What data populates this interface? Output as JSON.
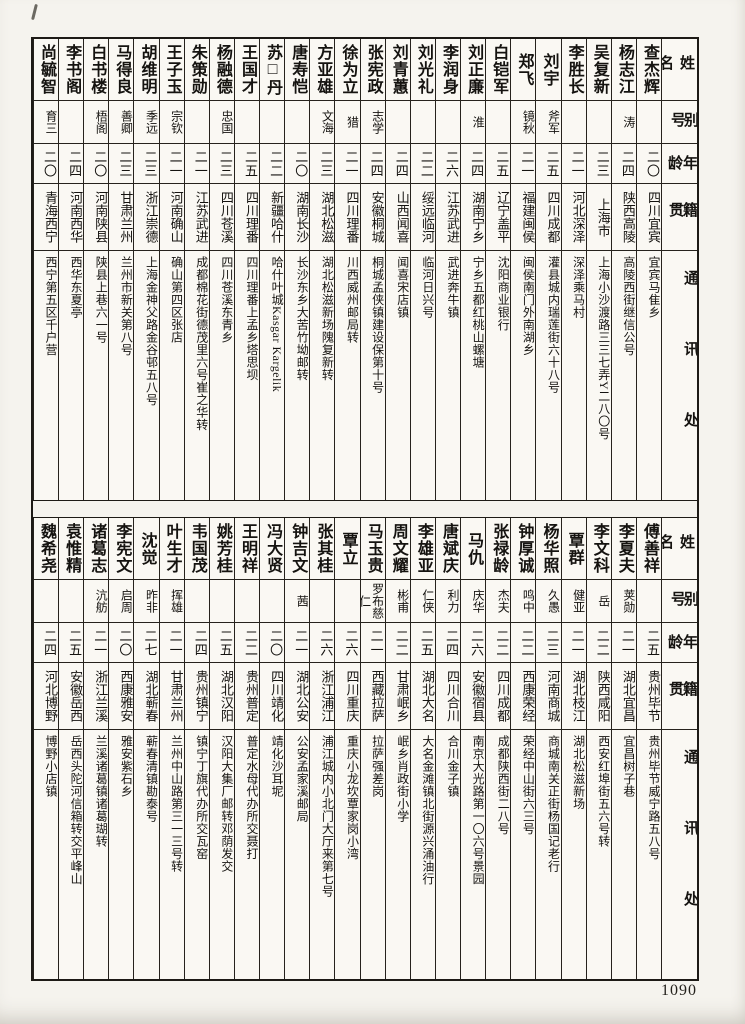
{
  "page": {
    "number": "1090"
  },
  "headers": {
    "name": "姓名",
    "alias": "别号",
    "age": "年龄",
    "native_place": "籍贯",
    "address": "通讯处"
  },
  "tables": [
    {
      "position": "top",
      "people": [
        {
          "name": "查杰辉",
          "alias": "",
          "age": "二〇",
          "native": "四川宜宾",
          "address": "宜宾马隹乡"
        },
        {
          "name": "杨志江",
          "alias": "涛",
          "age": "二四",
          "native": "陕西高陵",
          "address": "高陵西街继信公号"
        },
        {
          "name": "吴复新",
          "alias": "",
          "age": "二三",
          "native": "上海市",
          "address": "上海小沙渡路三三七弄Y二八〇号"
        },
        {
          "name": "李胜长",
          "alias": "",
          "age": "二一",
          "native": "河北深泽",
          "address": "深泽乘马村"
        },
        {
          "name": "刘宇",
          "alias": "斧军",
          "age": "二五",
          "native": "四川成都",
          "address": "灌县城内瑞莲街六十八号"
        },
        {
          "name": "郑飞",
          "alias": "镜秋",
          "age": "二一",
          "native": "福建闽侯",
          "address": "闽侯南门外南湖乡"
        },
        {
          "name": "白铠军",
          "alias": "",
          "age": "二五",
          "native": "辽宁盖平",
          "address": "沈阳商业银行"
        },
        {
          "name": "刘正廉",
          "alias": "淮",
          "age": "二四",
          "native": "湖南宁乡",
          "address": "宁乡五都红桃山螺塘"
        },
        {
          "name": "李润身",
          "alias": "",
          "age": "二六",
          "native": "江苏武进",
          "address": "武进奔牛镇"
        },
        {
          "name": "刘光礼",
          "alias": "",
          "age": "二二",
          "native": "绥远临河",
          "address": "临河日兴号"
        },
        {
          "name": "刘青蕙",
          "alias": "",
          "age": "二四",
          "native": "山西闻喜",
          "address": "闻喜宋店镇"
        },
        {
          "name": "张宪政",
          "alias": "志学",
          "age": "二四",
          "native": "安徽桐城",
          "address": "桐城孟侠镇建设保第十号"
        },
        {
          "name": "徐为立",
          "alias": "猎",
          "age": "二一",
          "native": "四川理番",
          "address": "川西威州邮局转"
        },
        {
          "name": "方亚雄",
          "alias": "文海",
          "age": "二三",
          "native": "湖北松滋",
          "address": "湖北松滋新场隗复新转"
        },
        {
          "name": "唐寿恺",
          "alias": "",
          "age": "二〇",
          "native": "湖南长沙",
          "address": "长沙东乡大苦竹坳邮转"
        },
        {
          "name": "苏□丹",
          "alias": "",
          "age": "二二",
          "native": "新疆哈什",
          "address": "哈什叶城Kasgar Kargelik"
        },
        {
          "name": "王国才",
          "alias": "",
          "age": "二五",
          "native": "四川理番",
          "address": "四川理番上孟乡塔思坝"
        },
        {
          "name": "杨融德",
          "alias": "忠国",
          "age": "二三",
          "native": "四川苍溪",
          "address": "四川苍溪东青乡"
        },
        {
          "name": "朱策勋",
          "alias": "",
          "age": "二一",
          "native": "江苏武进",
          "address": "成都棉花街德茂里六号崔之华转"
        },
        {
          "name": "王子玉",
          "alias": "宗钦",
          "age": "二一",
          "native": "河南确山",
          "address": "确山第四区张店"
        },
        {
          "name": "胡维明",
          "alias": "季远",
          "age": "二三",
          "native": "浙江崇德",
          "address": "上海金神父路金谷邨五八号"
        },
        {
          "name": "马得良",
          "alias": "善卿",
          "age": "二三",
          "native": "甘肃兰州",
          "address": "兰州市新关第八号"
        },
        {
          "name": "白书楼",
          "alias": "梧阁",
          "age": "二〇",
          "native": "河南陕县",
          "address": "陕县上巷六一号"
        },
        {
          "name": "李书阁",
          "alias": "",
          "age": "二四",
          "native": "河南西华",
          "address": "西华东夏亭"
        },
        {
          "name": "尚毓智",
          "alias": "育三",
          "age": "二〇",
          "native": "青海西宁",
          "address": "西宁第五区千户营"
        }
      ]
    },
    {
      "position": "bottom",
      "people": [
        {
          "name": "傅善祥",
          "alias": "",
          "age": "二五",
          "native": "贵州毕节",
          "address": "贵州毕节威宁路五八号"
        },
        {
          "name": "李夏夫",
          "alias": "荚勋",
          "age": "二一",
          "native": "湖北宜昌",
          "address": "宜昌树子巷"
        },
        {
          "name": "李文科",
          "alias": "岳",
          "age": "二二",
          "native": "陕西咸阳",
          "address": "西安红埠街五六号转"
        },
        {
          "name": "覃群",
          "alias": "健亚",
          "age": "二一",
          "native": "湖北枝江",
          "address": "湖北松滋新场"
        },
        {
          "name": "杨华照",
          "alias": "久愚",
          "age": "二三",
          "native": "河南商城",
          "address": "商城南关正街杨国记老行"
        },
        {
          "name": "钟厚诚",
          "alias": "鸣中",
          "age": "二二",
          "native": "西康荣经",
          "address": "荣经中山街六三号"
        },
        {
          "name": "张禄龄",
          "alias": "杰夫",
          "age": "二二",
          "native": "四川成都",
          "address": "成都陕西街二八号"
        },
        {
          "name": "马仇",
          "alias": "庆华",
          "age": "二六",
          "native": "安徽宿县",
          "address": "南京大光路第一〇六号景园"
        },
        {
          "name": "唐斌庆",
          "alias": "利力",
          "age": "二四",
          "native": "四川合川",
          "address": "合川金子镇"
        },
        {
          "name": "李雄亚",
          "alias": "仁侠",
          "age": "二五",
          "native": "湖北大名",
          "address": "大名金滩镇北街源兴涌油行"
        },
        {
          "name": "周文耀",
          "alias": "彬甫",
          "age": "二二",
          "native": "甘肃岷乡",
          "address": "岷乡肖政街小学"
        },
        {
          "name": "马玉贵",
          "alias": "罗布慈仁",
          "age": "二一",
          "native": "西藏拉萨",
          "address": "拉萨强差岗"
        },
        {
          "name": "覃立",
          "alias": "",
          "age": "二六",
          "native": "四川重庆",
          "address": "重庆小龙坎覃家岗小湾"
        },
        {
          "name": "张其桂",
          "alias": "",
          "age": "二六",
          "native": "浙江浦江",
          "address": "浦江城内小北门大厅来第七号"
        },
        {
          "name": "钟吉文",
          "alias": "茜",
          "age": "二一",
          "native": "湖北公安",
          "address": "公安孟家溪邮局"
        },
        {
          "name": "冯大贤",
          "alias": "",
          "age": "二〇",
          "native": "四川靖化",
          "address": "靖化沙耳坭"
        },
        {
          "name": "王明祥",
          "alias": "",
          "age": "二二",
          "native": "贵州普定",
          "address": "普定水母代办所交聂打"
        },
        {
          "name": "姚芳桂",
          "alias": "",
          "age": "二五",
          "native": "湖北汉阳",
          "address": "汉阳大集厂邮转邓荫发交"
        },
        {
          "name": "韦国茂",
          "alias": "",
          "age": "二四",
          "native": "贵州镇宁",
          "address": "镇宁丁旗代办所交瓦窑"
        },
        {
          "name": "叶生才",
          "alias": "挥雄",
          "age": "二一",
          "native": "甘肃兰州",
          "address": "兰州中山路第三一三号转"
        },
        {
          "name": "沈觉",
          "alias": "昨非",
          "age": "二七",
          "native": "湖北蕲春",
          "address": "蕲春清镇勘泰号"
        },
        {
          "name": "李宪文",
          "alias": "启周",
          "age": "二〇",
          "native": "西康雅安",
          "address": "雅安紫石乡"
        },
        {
          "name": "诸葛志",
          "alias": "沆舫",
          "age": "二一",
          "native": "浙江兰溪",
          "address": "兰溪诸葛镇诸葛瑚转"
        },
        {
          "name": "袁惟精",
          "alias": "",
          "age": "二五",
          "native": "安徽岳西",
          "address": "岳西头陀河信箱转交平峰山"
        },
        {
          "name": "魏希尧",
          "alias": "",
          "age": "二四",
          "native": "河北博野",
          "address": "博野小店镇"
        }
      ]
    }
  ]
}
